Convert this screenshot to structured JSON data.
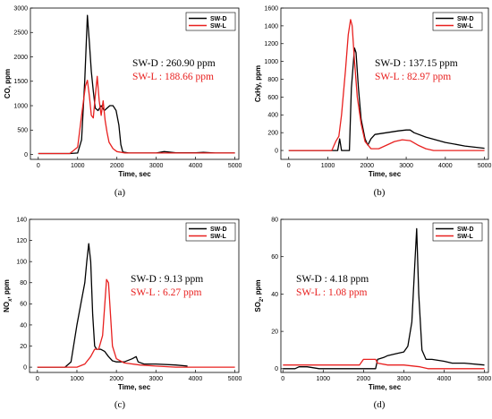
{
  "colors": {
    "black_series": "#000000",
    "red_series": "#e8201f",
    "axis": "#000000"
  },
  "chart_data": [
    {
      "id": "a",
      "type": "line",
      "caption": "(a)",
      "xlabel": "Time, sec",
      "ylabel": "CO, ppm",
      "xlim": [
        -200,
        5100
      ],
      "ylim": [
        -100,
        3000
      ],
      "xticks": [
        0,
        1000,
        2000,
        3000,
        4000,
        5000
      ],
      "yticks": [
        0,
        500,
        1000,
        1500,
        2000,
        2500,
        3000
      ],
      "legend_position": "top-right",
      "annotations": [
        {
          "text": "SW-D : 260.90 ppm",
          "series": 0
        },
        {
          "text": "SW-L : 188.66 ppm",
          "series": 1
        }
      ],
      "series": [
        {
          "name": "SW-D",
          "color": "black",
          "points": [
            [
              0,
              20
            ],
            [
              800,
              20
            ],
            [
              1000,
              30
            ],
            [
              1100,
              300
            ],
            [
              1180,
              1500
            ],
            [
              1250,
              2850
            ],
            [
              1300,
              2300
            ],
            [
              1350,
              1700
            ],
            [
              1400,
              1300
            ],
            [
              1450,
              950
            ],
            [
              1520,
              900
            ],
            [
              1600,
              1000
            ],
            [
              1680,
              900
            ],
            [
              1750,
              950
            ],
            [
              1820,
              1000
            ],
            [
              1900,
              1000
            ],
            [
              1980,
              900
            ],
            [
              2050,
              600
            ],
            [
              2100,
              200
            ],
            [
              2150,
              50
            ],
            [
              2300,
              30
            ],
            [
              3000,
              30
            ],
            [
              3200,
              60
            ],
            [
              3500,
              35
            ],
            [
              4000,
              35
            ],
            [
              4200,
              45
            ],
            [
              4500,
              30
            ],
            [
              5000,
              30
            ]
          ]
        },
        {
          "name": "SW-L",
          "color": "red",
          "points": [
            [
              0,
              20
            ],
            [
              800,
              20
            ],
            [
              1000,
              150
            ],
            [
              1100,
              800
            ],
            [
              1200,
              1400
            ],
            [
              1250,
              1520
            ],
            [
              1300,
              1200
            ],
            [
              1350,
              800
            ],
            [
              1400,
              750
            ],
            [
              1450,
              1200
            ],
            [
              1500,
              1600
            ],
            [
              1550,
              1100
            ],
            [
              1600,
              800
            ],
            [
              1650,
              1100
            ],
            [
              1700,
              700
            ],
            [
              1750,
              450
            ],
            [
              1800,
              250
            ],
            [
              1900,
              120
            ],
            [
              2000,
              60
            ],
            [
              2200,
              30
            ],
            [
              3000,
              30
            ],
            [
              4000,
              30
            ],
            [
              5000,
              30
            ]
          ]
        }
      ]
    },
    {
      "id": "b",
      "type": "line",
      "caption": "(b)",
      "xlabel": "Time, sec",
      "ylabel": "CxHy, ppm",
      "xlim": [
        -200,
        5100
      ],
      "ylim": [
        -100,
        1600
      ],
      "xticks": [
        0,
        1000,
        2000,
        3000,
        4000,
        5000
      ],
      "yticks": [
        0,
        200,
        400,
        600,
        800,
        1000,
        1200,
        1400,
        1600
      ],
      "legend_position": "top-right",
      "annotations": [
        {
          "text": "SW-D : 137.15 ppm",
          "series": 0
        },
        {
          "text": "SW-L : 82.97 ppm",
          "series": 1
        }
      ],
      "series": [
        {
          "name": "SW-D",
          "color": "black",
          "points": [
            [
              0,
              0
            ],
            [
              1250,
              0
            ],
            [
              1300,
              130
            ],
            [
              1350,
              0
            ],
            [
              1550,
              0
            ],
            [
              1600,
              700
            ],
            [
              1680,
              1150
            ],
            [
              1720,
              1100
            ],
            [
              1780,
              700
            ],
            [
              1850,
              350
            ],
            [
              1950,
              130
            ],
            [
              2020,
              60
            ],
            [
              2100,
              130
            ],
            [
              2200,
              180
            ],
            [
              2500,
              200
            ],
            [
              2800,
              220
            ],
            [
              3000,
              230
            ],
            [
              3100,
              230
            ],
            [
              3200,
              200
            ],
            [
              3500,
              150
            ],
            [
              4000,
              90
            ],
            [
              4500,
              50
            ],
            [
              5000,
              25
            ]
          ]
        },
        {
          "name": "SW-L",
          "color": "red",
          "points": [
            [
              0,
              0
            ],
            [
              1100,
              0
            ],
            [
              1200,
              100
            ],
            [
              1280,
              160
            ],
            [
              1350,
              400
            ],
            [
              1450,
              900
            ],
            [
              1520,
              1300
            ],
            [
              1580,
              1470
            ],
            [
              1620,
              1400
            ],
            [
              1680,
              1000
            ],
            [
              1750,
              600
            ],
            [
              1850,
              300
            ],
            [
              1950,
              100
            ],
            [
              2100,
              20
            ],
            [
              2300,
              20
            ],
            [
              2500,
              60
            ],
            [
              2700,
              100
            ],
            [
              2900,
              120
            ],
            [
              3100,
              110
            ],
            [
              3300,
              60
            ],
            [
              3500,
              20
            ],
            [
              3700,
              0
            ],
            [
              5000,
              0
            ]
          ]
        }
      ]
    },
    {
      "id": "c",
      "type": "line",
      "caption": "(c)",
      "xlabel": "Time, sec",
      "ylabel": "NOx, ppm",
      "xlim": [
        -200,
        5100
      ],
      "ylim": [
        -5,
        140
      ],
      "xticks": [
        0,
        1000,
        2000,
        3000,
        4000,
        5000
      ],
      "yticks": [
        0,
        20,
        40,
        60,
        80,
        100,
        120,
        140
      ],
      "legend_position": "top-right",
      "annotations": [
        {
          "text": "SW-D : 9.13 ppm",
          "series": 0
        },
        {
          "text": "SW-L : 6.27 ppm",
          "series": 1
        }
      ],
      "series": [
        {
          "name": "SW-D",
          "color": "black",
          "points": [
            [
              0,
              0
            ],
            [
              700,
              0
            ],
            [
              850,
              5
            ],
            [
              1000,
              40
            ],
            [
              1100,
              60
            ],
            [
              1200,
              80
            ],
            [
              1250,
              100
            ],
            [
              1300,
              117
            ],
            [
              1350,
              100
            ],
            [
              1400,
              50
            ],
            [
              1450,
              20
            ],
            [
              1500,
              17
            ],
            [
              1600,
              17
            ],
            [
              1700,
              15
            ],
            [
              1800,
              10
            ],
            [
              1900,
              6
            ],
            [
              2000,
              5
            ],
            [
              2200,
              5
            ],
            [
              2400,
              8
            ],
            [
              2500,
              10
            ],
            [
              2550,
              5
            ],
            [
              2700,
              3
            ],
            [
              3000,
              3
            ],
            [
              3500,
              2
            ],
            [
              3800,
              1
            ]
          ]
        },
        {
          "name": "SW-L",
          "color": "red",
          "points": [
            [
              0,
              0
            ],
            [
              1000,
              0
            ],
            [
              1200,
              3
            ],
            [
              1350,
              10
            ],
            [
              1450,
              17
            ],
            [
              1550,
              17
            ],
            [
              1650,
              30
            ],
            [
              1750,
              83
            ],
            [
              1800,
              80
            ],
            [
              1850,
              50
            ],
            [
              1900,
              20
            ],
            [
              2000,
              8
            ],
            [
              2200,
              4
            ],
            [
              2600,
              2
            ],
            [
              3000,
              1
            ],
            [
              3500,
              0
            ],
            [
              5000,
              0
            ]
          ]
        }
      ]
    },
    {
      "id": "d",
      "type": "line",
      "caption": "(d)",
      "xlabel": "Time, sec",
      "ylabel": "SO2, ppm",
      "xlim": [
        -50,
        5100
      ],
      "ylim": [
        -2,
        80
      ],
      "xticks": [
        0,
        1000,
        2000,
        3000,
        4000,
        5000
      ],
      "yticks": [
        0,
        20,
        40,
        60,
        80
      ],
      "legend_position": "top-right",
      "annotations": [
        {
          "text": "SW-D : 4.18 ppm",
          "series": 0
        },
        {
          "text": "SW-L : 1.08 ppm",
          "series": 1
        }
      ],
      "series": [
        {
          "name": "SW-D",
          "color": "black",
          "points": [
            [
              0,
              0
            ],
            [
              300,
              0
            ],
            [
              400,
              1
            ],
            [
              600,
              1
            ],
            [
              900,
              0
            ],
            [
              2300,
              0
            ],
            [
              2350,
              5
            ],
            [
              2500,
              6
            ],
            [
              2600,
              7
            ],
            [
              2800,
              8
            ],
            [
              3000,
              9
            ],
            [
              3100,
              12
            ],
            [
              3200,
              25
            ],
            [
              3270,
              55
            ],
            [
              3320,
              75
            ],
            [
              3370,
              40
            ],
            [
              3450,
              10
            ],
            [
              3550,
              5
            ],
            [
              3700,
              5
            ],
            [
              4000,
              4
            ],
            [
              4200,
              3
            ],
            [
              4500,
              3
            ],
            [
              5000,
              2
            ]
          ]
        },
        {
          "name": "SW-L",
          "color": "red",
          "points": [
            [
              0,
              2
            ],
            [
              1000,
              2
            ],
            [
              1900,
              2
            ],
            [
              2000,
              5
            ],
            [
              2300,
              5
            ],
            [
              2350,
              3
            ],
            [
              2600,
              2
            ],
            [
              3000,
              2
            ],
            [
              3400,
              1
            ],
            [
              3600,
              0
            ],
            [
              5000,
              0
            ]
          ]
        }
      ]
    }
  ]
}
